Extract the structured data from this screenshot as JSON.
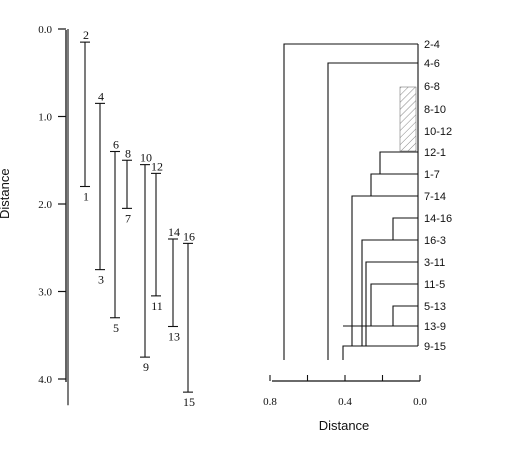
{
  "left_panel": {
    "y_axis_label": "Distance",
    "y_ticks": [
      "0.0",
      "1.0",
      "2.0",
      "3.0",
      "4.0"
    ],
    "segments": [
      {
        "top_label": "",
        "bottom_label": "",
        "y_start": 0.0,
        "y_end": 4.3
      },
      {
        "top_label": "2",
        "bottom_label": "1",
        "y_start": 0.15,
        "y_end": 1.8
      },
      {
        "top_label": "4",
        "bottom_label": "3",
        "y_start": 0.85,
        "y_end": 2.75
      },
      {
        "top_label": "6",
        "bottom_label": "5",
        "y_start": 1.4,
        "y_end": 3.3
      },
      {
        "top_label": "8",
        "bottom_label": "7",
        "y_start": 1.5,
        "y_end": 2.05
      },
      {
        "top_label": "10",
        "bottom_label": "9",
        "y_start": 1.55,
        "y_end": 3.75
      },
      {
        "top_label": "12",
        "bottom_label": "11",
        "y_start": 1.65,
        "y_end": 3.05
      },
      {
        "top_label": "14",
        "bottom_label": "13",
        "y_start": 2.4,
        "y_end": 3.4
      },
      {
        "top_label": "16",
        "bottom_label": "15",
        "y_start": 2.45,
        "y_end": 4.15
      }
    ]
  },
  "right_panel": {
    "x_axis_label": "Distance",
    "x_ticks": [
      "0.8",
      "0.4",
      "0.0"
    ],
    "leaf_labels": [
      "2-4",
      "4-6",
      "6-8",
      "8-10",
      "10-12",
      "12-1",
      "1-7",
      "7-14",
      "14-16",
      "16-3",
      "3-11",
      "11-5",
      "5-13",
      "13-9",
      "9-15"
    ]
  }
}
